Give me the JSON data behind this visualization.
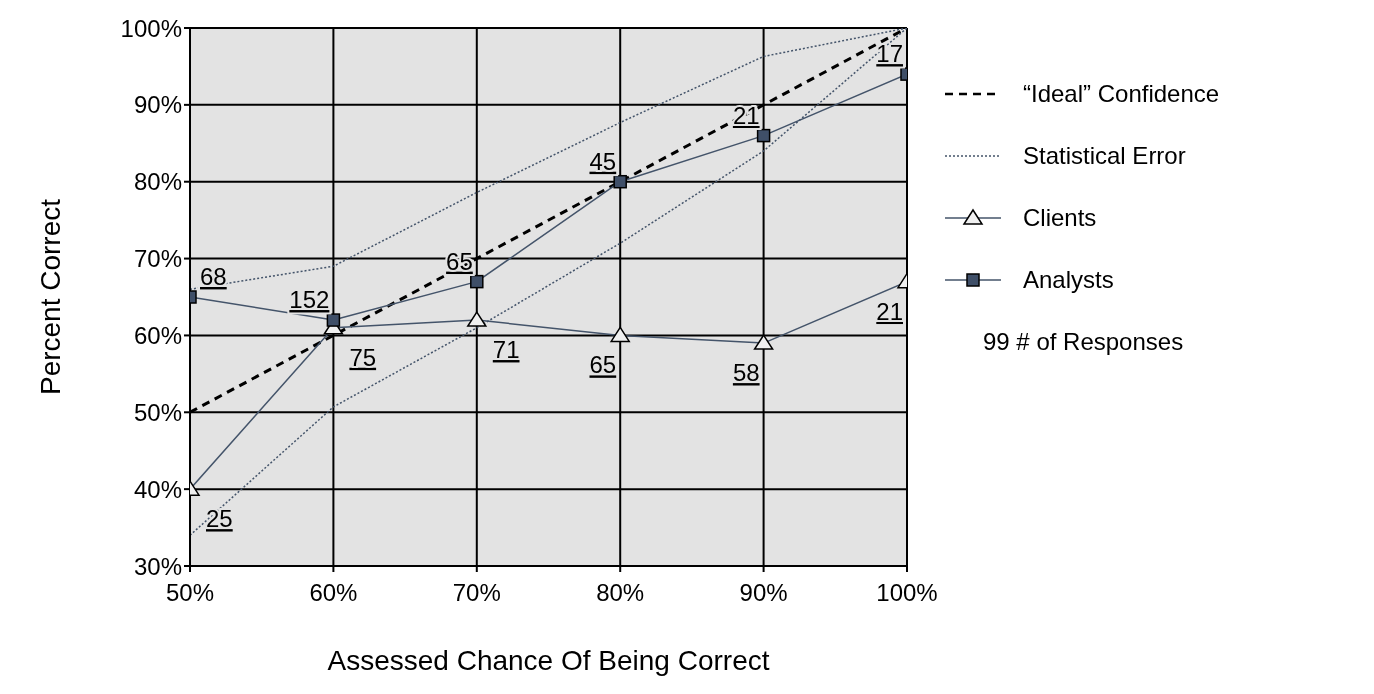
{
  "chart_data": {
    "type": "line",
    "xlabel": "Assessed Chance Of Being Correct",
    "ylabel": "Percent Correct",
    "x": [
      50,
      60,
      70,
      80,
      90,
      100
    ],
    "xlim": [
      50,
      100
    ],
    "xticks": [
      {
        "value": 50,
        "label": "50%"
      },
      {
        "value": 60,
        "label": "60%"
      },
      {
        "value": 70,
        "label": "70%"
      },
      {
        "value": 80,
        "label": "80%"
      },
      {
        "value": 90,
        "label": "90%"
      },
      {
        "value": 100,
        "label": "100%"
      }
    ],
    "ylim": [
      30,
      100
    ],
    "yticks": [
      {
        "value": 30,
        "label": "30%"
      },
      {
        "value": 40,
        "label": "40%"
      },
      {
        "value": 50,
        "label": "50%"
      },
      {
        "value": 60,
        "label": "60%"
      },
      {
        "value": 70,
        "label": "70%"
      },
      {
        "value": 80,
        "label": "80%"
      },
      {
        "value": 90,
        "label": "90%"
      },
      {
        "value": 100,
        "label": "100%"
      }
    ],
    "grid": true,
    "legend": "right",
    "series": [
      {
        "name": "“Ideal” Confidence",
        "color": "#000000",
        "line_style": "dashed",
        "marker": "none",
        "x": [
          50,
          100
        ],
        "values": [
          50,
          100
        ]
      },
      {
        "name": "Statistical Error",
        "color": "#44546a",
        "line_style": "dotted",
        "marker": "none",
        "values": [
          66,
          69,
          78.6,
          87.7,
          96.3,
          100
        ]
      },
      {
        "color": "#44546a",
        "line_style": "dotted",
        "marker": "none",
        "values": [
          34,
          50.7,
          61,
          72,
          84,
          100
        ]
      },
      {
        "name": "Clients",
        "color": "#44546a",
        "line_style": "solid",
        "marker": "triangle",
        "values": [
          40,
          61,
          62,
          60,
          59,
          67
        ]
      },
      {
        "name": "Analysts",
        "color": "#44546a",
        "line_style": "solid",
        "marker": "square",
        "values": [
          65,
          62,
          67,
          80,
          86,
          94
        ]
      }
    ],
    "annotations": [
      {
        "text": "68",
        "x": 50,
        "y": 65
      },
      {
        "text": "152",
        "x": 60,
        "y": 62
      },
      {
        "text": "65",
        "x": 70,
        "y": 67
      },
      {
        "text": "45",
        "x": 80,
        "y": 80
      },
      {
        "text": "21",
        "x": 90,
        "y": 86
      },
      {
        "text": "17",
        "x": 100,
        "y": 94
      },
      {
        "text": "25",
        "x": 50,
        "y": 40
      },
      {
        "text": "75",
        "x": 60,
        "y": 61
      },
      {
        "text": "71",
        "x": 70,
        "y": 62
      },
      {
        "text": "65",
        "x": 80,
        "y": 60
      },
      {
        "text": "58",
        "x": 90,
        "y": 59
      },
      {
        "text": "21",
        "x": 100,
        "y": 67
      },
      "99 # of Responses"
    ]
  }
}
